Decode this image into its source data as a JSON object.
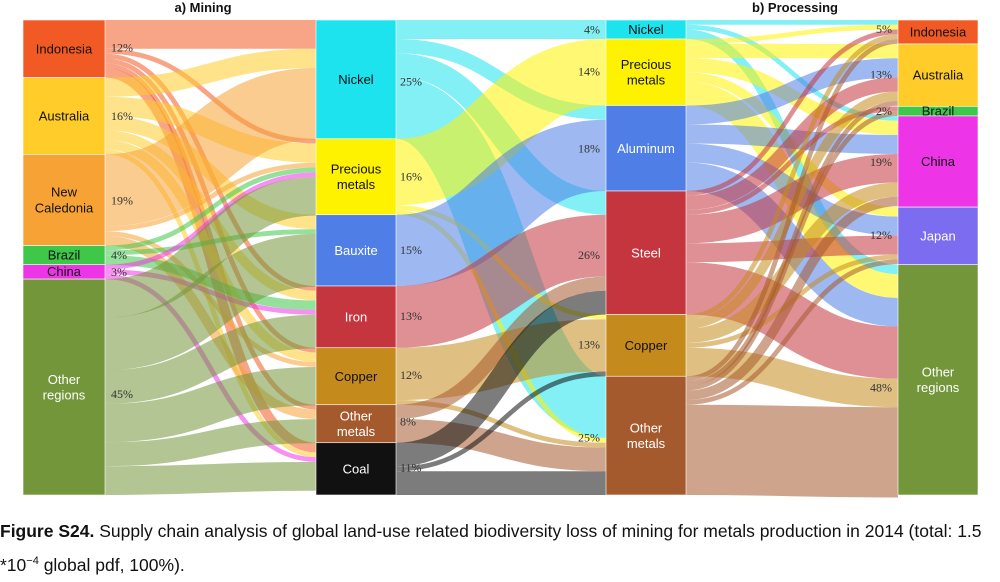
{
  "chart_data": {
    "type": "sankey",
    "panels": [
      {
        "title": "a) Mining",
        "sources": [
          {
            "label": "Indonesia",
            "pct": "12%",
            "value": 12,
            "color": "#f15a24"
          },
          {
            "label": "Australia",
            "pct": "16%",
            "value": 16,
            "color": "#ffcc29"
          },
          {
            "label": "New Caledonia",
            "pct": "19%",
            "value": 19,
            "color": "#f7a234"
          },
          {
            "label": "Brazil",
            "pct": "4%",
            "value": 4,
            "color": "#3ec749"
          },
          {
            "label": "China",
            "pct": "3%",
            "value": 3,
            "color": "#ee34e7"
          },
          {
            "label": "Other regions",
            "pct": "45%",
            "value": 45,
            "color": "#73963a"
          }
        ],
        "targets": [
          {
            "label": "Nickel",
            "pct": "25%",
            "value": 25,
            "color": "#1de3ef"
          },
          {
            "label": "Precious metals",
            "pct": "16%",
            "value": 16,
            "color": "#fff200"
          },
          {
            "label": "Bauxite",
            "pct": "15%",
            "value": 15,
            "color": "#4e7ee6"
          },
          {
            "label": "Iron",
            "pct": "13%",
            "value": 13,
            "color": "#c4353d"
          },
          {
            "label": "Copper",
            "pct": "12%",
            "value": 12,
            "color": "#c48a1c"
          },
          {
            "label": "Other metals",
            "pct": "8%",
            "value": 8,
            "color": "#a55a2e"
          },
          {
            "label": "Coal",
            "pct": "11%",
            "value": 11,
            "color": "#111111"
          }
        ]
      },
      {
        "title": "b) Processing",
        "sources": [
          {
            "label": "Nickel",
            "pct": "4%",
            "value": 4,
            "color": "#1de3ef"
          },
          {
            "label": "Precious metals",
            "pct": "14%",
            "value": 14,
            "color": "#fff200"
          },
          {
            "label": "Aluminum",
            "pct": "18%",
            "value": 18,
            "color": "#4e7ee6"
          },
          {
            "label": "Steel",
            "pct": "26%",
            "value": 26,
            "color": "#c4353d"
          },
          {
            "label": "Copper",
            "pct": "13%",
            "value": 13,
            "color": "#c48a1c"
          },
          {
            "label": "Other metals",
            "pct": "25%",
            "value": 25,
            "color": "#a55a2e"
          }
        ],
        "targets": [
          {
            "label": "Indonesia",
            "pct": "5%",
            "value": 5,
            "color": "#f15a24"
          },
          {
            "label": "Australia",
            "pct": "13%",
            "value": 13,
            "color": "#ffcc29"
          },
          {
            "label": "Brazil",
            "pct": "2%",
            "value": 2,
            "color": "#3ec749"
          },
          {
            "label": "China",
            "pct": "19%",
            "value": 19,
            "color": "#ee34e7"
          },
          {
            "label": "Japan",
            "pct": "12%",
            "value": 12,
            "color": "#7b6cf0"
          },
          {
            "label": "Other regions",
            "pct": "48%",
            "value": 48,
            "color": "#73963a"
          }
        ]
      }
    ],
    "mining_flows": [
      [
        0,
        0,
        6
      ],
      [
        0,
        1,
        1
      ],
      [
        0,
        3,
        1
      ],
      [
        0,
        4,
        1
      ],
      [
        0,
        5,
        1
      ],
      [
        0,
        6,
        2
      ],
      [
        1,
        0,
        4
      ],
      [
        1,
        1,
        4
      ],
      [
        1,
        2,
        3
      ],
      [
        1,
        3,
        2
      ],
      [
        1,
        4,
        2
      ],
      [
        1,
        6,
        1
      ],
      [
        2,
        0,
        15
      ],
      [
        2,
        1,
        1
      ],
      [
        2,
        4,
        1
      ],
      [
        2,
        5,
        2
      ],
      [
        3,
        1,
        1
      ],
      [
        3,
        2,
        1
      ],
      [
        3,
        3,
        2
      ],
      [
        4,
        1,
        1
      ],
      [
        4,
        3,
        1
      ],
      [
        4,
        6,
        1
      ],
      [
        5,
        1,
        8
      ],
      [
        5,
        2,
        11
      ],
      [
        5,
        3,
        7
      ],
      [
        5,
        4,
        8
      ],
      [
        5,
        5,
        5
      ],
      [
        5,
        6,
        6
      ]
    ],
    "mid_flows": [
      [
        0,
        0,
        4
      ],
      [
        0,
        2,
        3
      ],
      [
        0,
        3,
        5
      ],
      [
        0,
        5,
        13
      ],
      [
        1,
        1,
        14
      ],
      [
        1,
        4,
        1
      ],
      [
        1,
        5,
        1
      ],
      [
        2,
        2,
        15
      ],
      [
        3,
        3,
        13
      ],
      [
        4,
        4,
        11
      ],
      [
        4,
        5,
        1
      ],
      [
        5,
        3,
        3
      ],
      [
        5,
        5,
        5
      ],
      [
        6,
        3,
        5
      ],
      [
        6,
        4,
        1
      ],
      [
        6,
        5,
        5
      ]
    ],
    "processing_flows": [
      [
        0,
        0,
        1
      ],
      [
        0,
        3,
        1
      ],
      [
        0,
        5,
        2
      ],
      [
        1,
        0,
        1
      ],
      [
        1,
        1,
        3
      ],
      [
        1,
        3,
        3
      ],
      [
        1,
        4,
        2
      ],
      [
        1,
        5,
        5
      ],
      [
        2,
        1,
        4
      ],
      [
        2,
        3,
        4
      ],
      [
        2,
        4,
        4
      ],
      [
        2,
        5,
        6
      ],
      [
        3,
        0,
        1
      ],
      [
        3,
        1,
        3
      ],
      [
        3,
        2,
        1
      ],
      [
        3,
        3,
        6
      ],
      [
        3,
        4,
        4
      ],
      [
        3,
        5,
        11
      ],
      [
        4,
        0,
        1
      ],
      [
        4,
        1,
        2
      ],
      [
        4,
        3,
        3
      ],
      [
        4,
        4,
        1
      ],
      [
        4,
        5,
        6
      ],
      [
        5,
        0,
        1
      ],
      [
        5,
        1,
        1
      ],
      [
        5,
        2,
        1
      ],
      [
        5,
        3,
        2
      ],
      [
        5,
        4,
        1
      ],
      [
        5,
        5,
        19
      ]
    ]
  },
  "caption": {
    "label": "Figure S24.",
    "text": "Supply chain analysis of global land-use related biodiversity loss of mining for metals production in 2014 (total: 1.5 *10",
    "exponent": "−4",
    "suffix": " global pdf, 100%)."
  }
}
